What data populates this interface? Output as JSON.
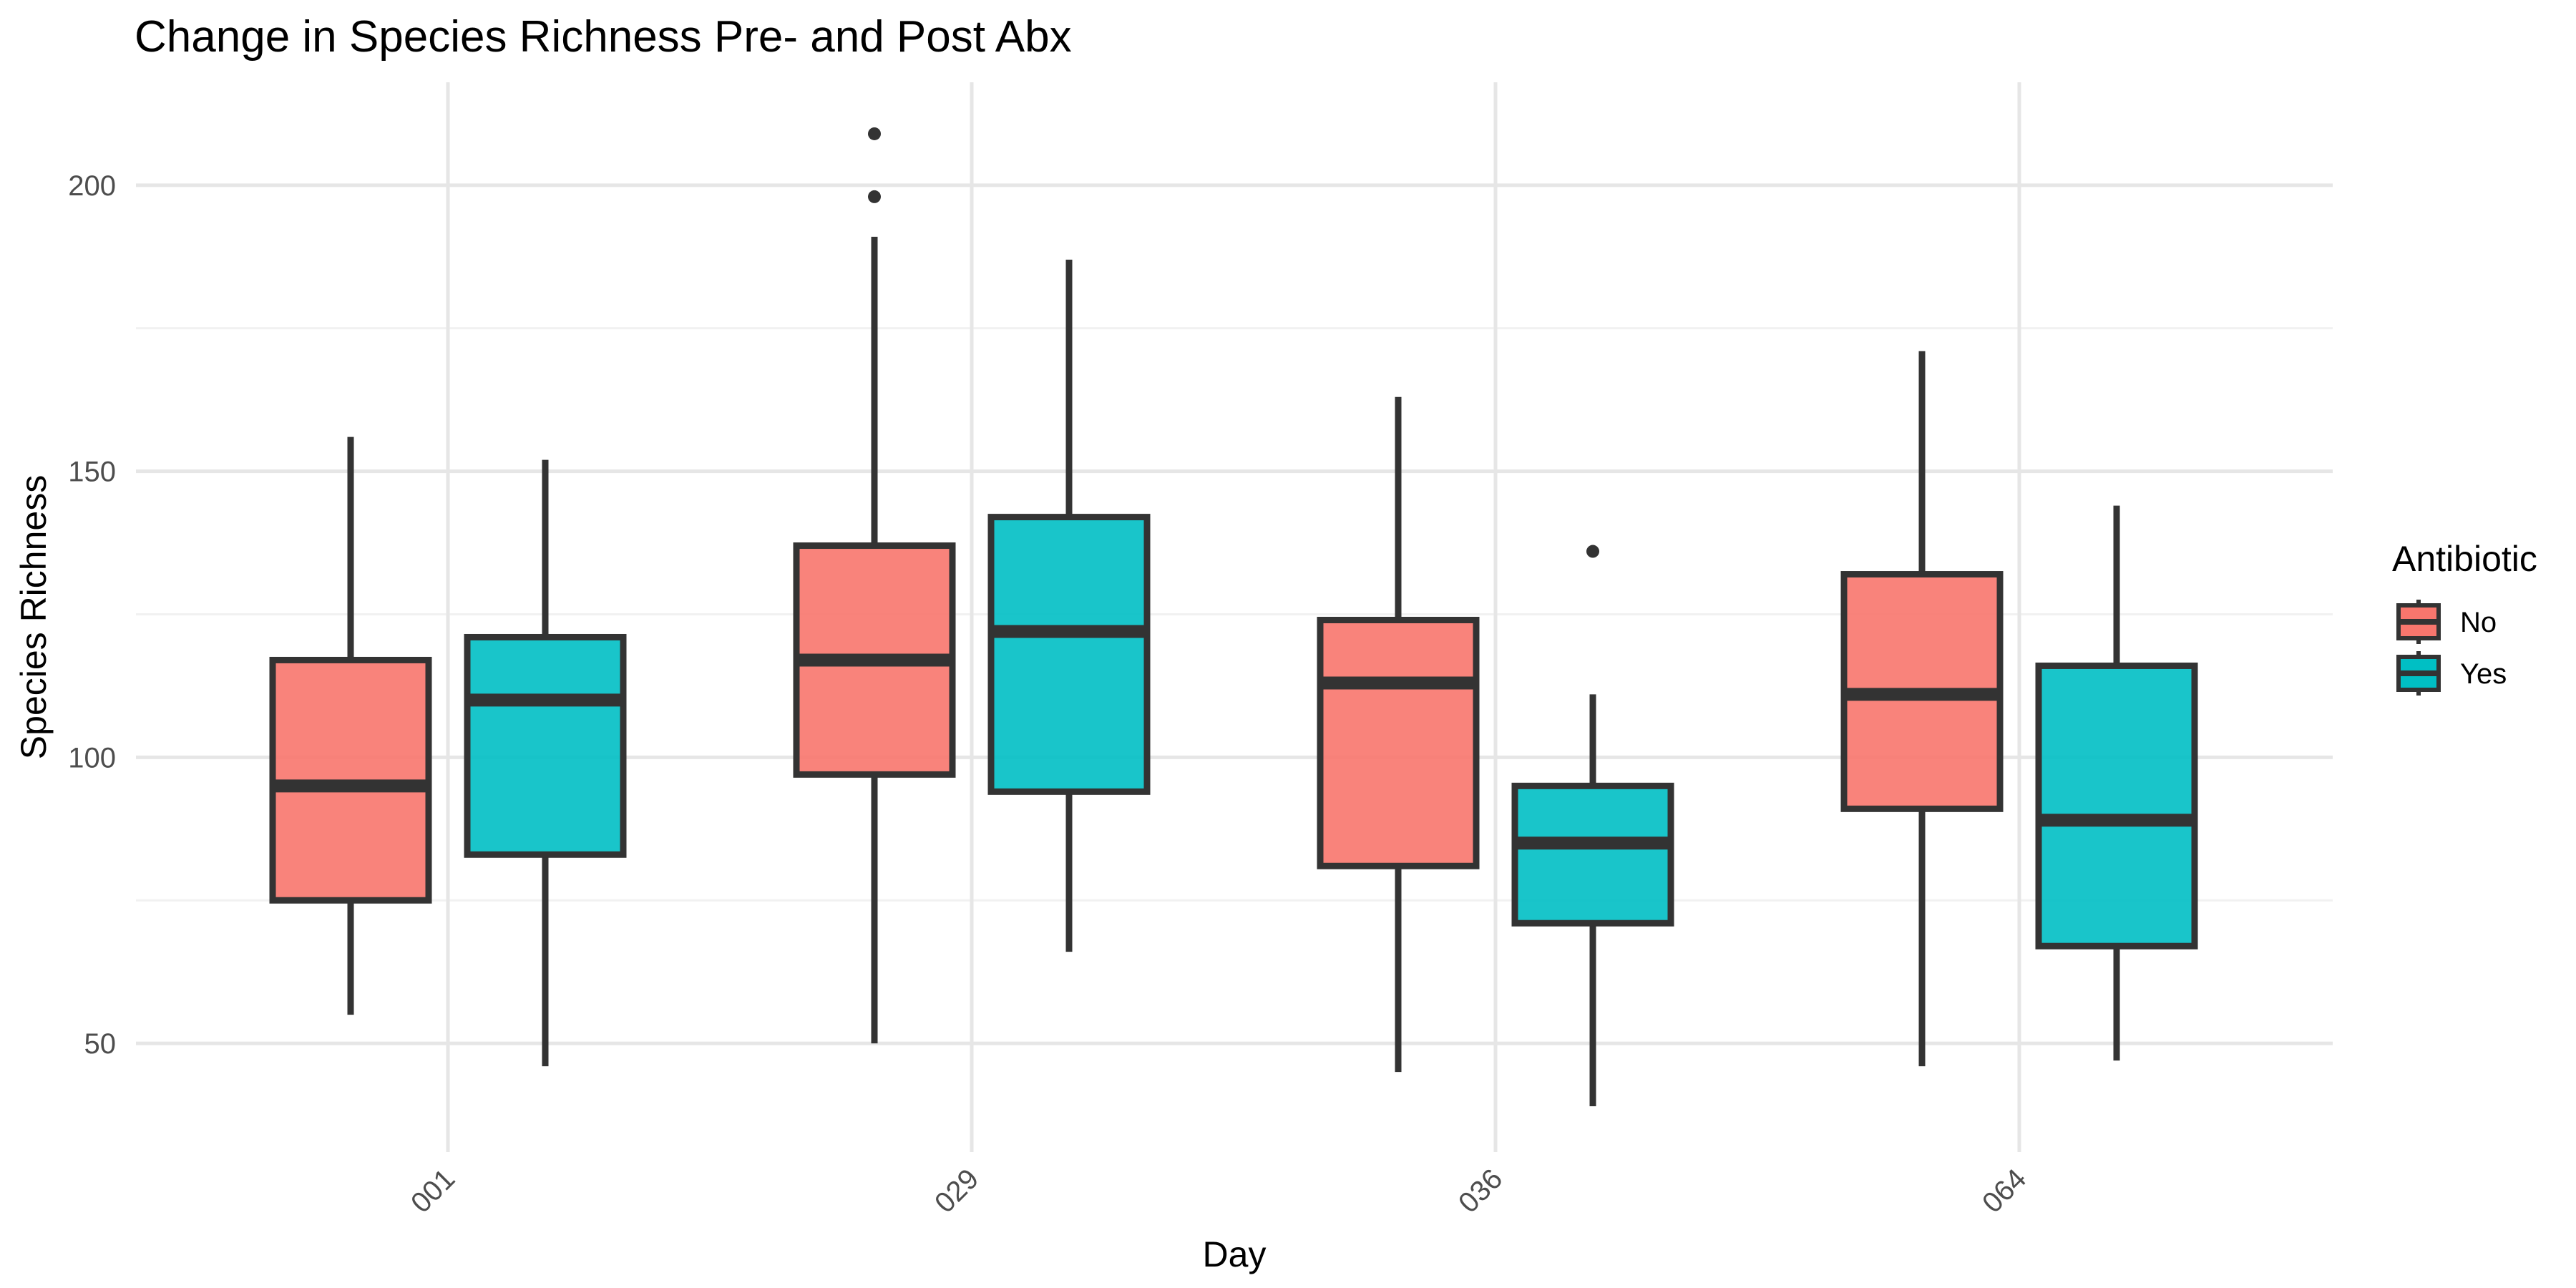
{
  "chart_data": {
    "type": "boxplot",
    "title": "Change in Species Richness Pre- and Post Abx",
    "xlabel": "Day",
    "ylabel": "Species Richness",
    "categories": [
      "001",
      "029",
      "036",
      "064"
    ],
    "y_ticks": [
      50,
      100,
      150,
      200
    ],
    "y_tick_labels": [
      "50",
      "100",
      "150",
      "200"
    ],
    "ylim": [
      31,
      218
    ],
    "grid": true,
    "legend": {
      "title": "Antibiotic",
      "placement": "right",
      "entries": [
        "No",
        "Yes"
      ]
    },
    "series": [
      {
        "name": "No",
        "color": "#F8766D",
        "boxes": [
          {
            "category": "001",
            "min": 55,
            "q1": 75,
            "median": 95,
            "q3": 117,
            "max": 156,
            "outliers": []
          },
          {
            "category": "029",
            "min": 50,
            "q1": 97,
            "median": 117,
            "q3": 137,
            "max": 191,
            "outliers": [
              198,
              209
            ]
          },
          {
            "category": "036",
            "min": 45,
            "q1": 81,
            "median": 113,
            "q3": 124,
            "max": 163,
            "outliers": []
          },
          {
            "category": "064",
            "min": 46,
            "q1": 91,
            "median": 111,
            "q3": 132,
            "max": 171,
            "outliers": []
          }
        ]
      },
      {
        "name": "Yes",
        "color": "#00BFC4",
        "boxes": [
          {
            "category": "001",
            "min": 46,
            "q1": 83,
            "median": 110,
            "q3": 121,
            "max": 152,
            "outliers": []
          },
          {
            "category": "029",
            "min": 66,
            "q1": 94,
            "median": 122,
            "q3": 142,
            "max": 187,
            "outliers": []
          },
          {
            "category": "036",
            "min": 39,
            "q1": 71,
            "median": 85,
            "q3": 95,
            "max": 111,
            "outliers": [
              136
            ]
          },
          {
            "category": "064",
            "min": 47,
            "q1": 67,
            "median": 89,
            "q3": 116,
            "max": 144,
            "outliers": []
          }
        ]
      }
    ]
  }
}
